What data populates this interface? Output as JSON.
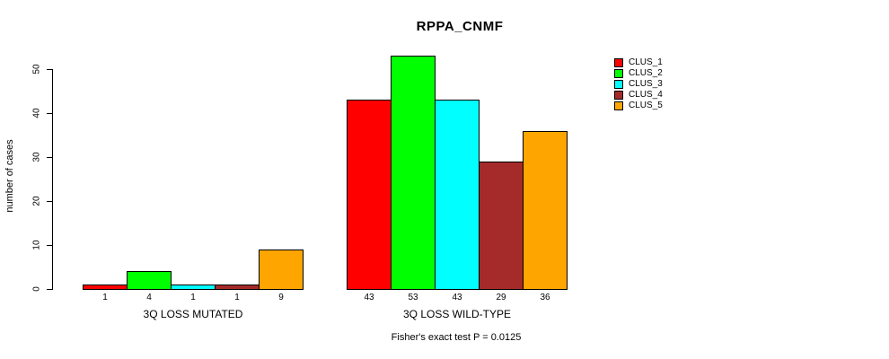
{
  "title": "RPPA_CNMF",
  "y_axis": {
    "label": "number of cases",
    "ticks": [
      "0",
      "10",
      "20",
      "30",
      "40",
      "50"
    ]
  },
  "legend": {
    "items": [
      {
        "label": "CLUS_1",
        "color": "#FF0000"
      },
      {
        "label": "CLUS_2",
        "color": "#00FF00"
      },
      {
        "label": "CLUS_3",
        "color": "#00FFFF"
      },
      {
        "label": "CLUS_4",
        "color": "#A52A2A"
      },
      {
        "label": "CLUS_5",
        "color": "#FFA500"
      }
    ]
  },
  "footer": "Fisher's exact test P = 0.0125",
  "chart_data": {
    "type": "bar",
    "title": "RPPA_CNMF",
    "xlabel": "",
    "ylabel": "number of cases",
    "ylim": [
      0,
      50
    ],
    "y_ticks": [
      0,
      10,
      20,
      30,
      40,
      50
    ],
    "grid": false,
    "legend_position": "right-outside",
    "categories": [
      "3Q LOSS MUTATED",
      "3Q LOSS WILD-TYPE"
    ],
    "series": [
      {
        "name": "CLUS_1",
        "color": "#FF0000",
        "values": [
          1,
          43
        ]
      },
      {
        "name": "CLUS_2",
        "color": "#00FF00",
        "values": [
          4,
          53
        ]
      },
      {
        "name": "CLUS_3",
        "color": "#00FFFF",
        "values": [
          1,
          43
        ]
      },
      {
        "name": "CLUS_4",
        "color": "#A52A2A",
        "values": [
          1,
          29
        ]
      },
      {
        "name": "CLUS_5",
        "color": "#FFA500",
        "values": [
          9,
          36
        ]
      }
    ],
    "bar_value_labels_shown": true,
    "annotation": "Fisher's exact test P = 0.0125"
  }
}
